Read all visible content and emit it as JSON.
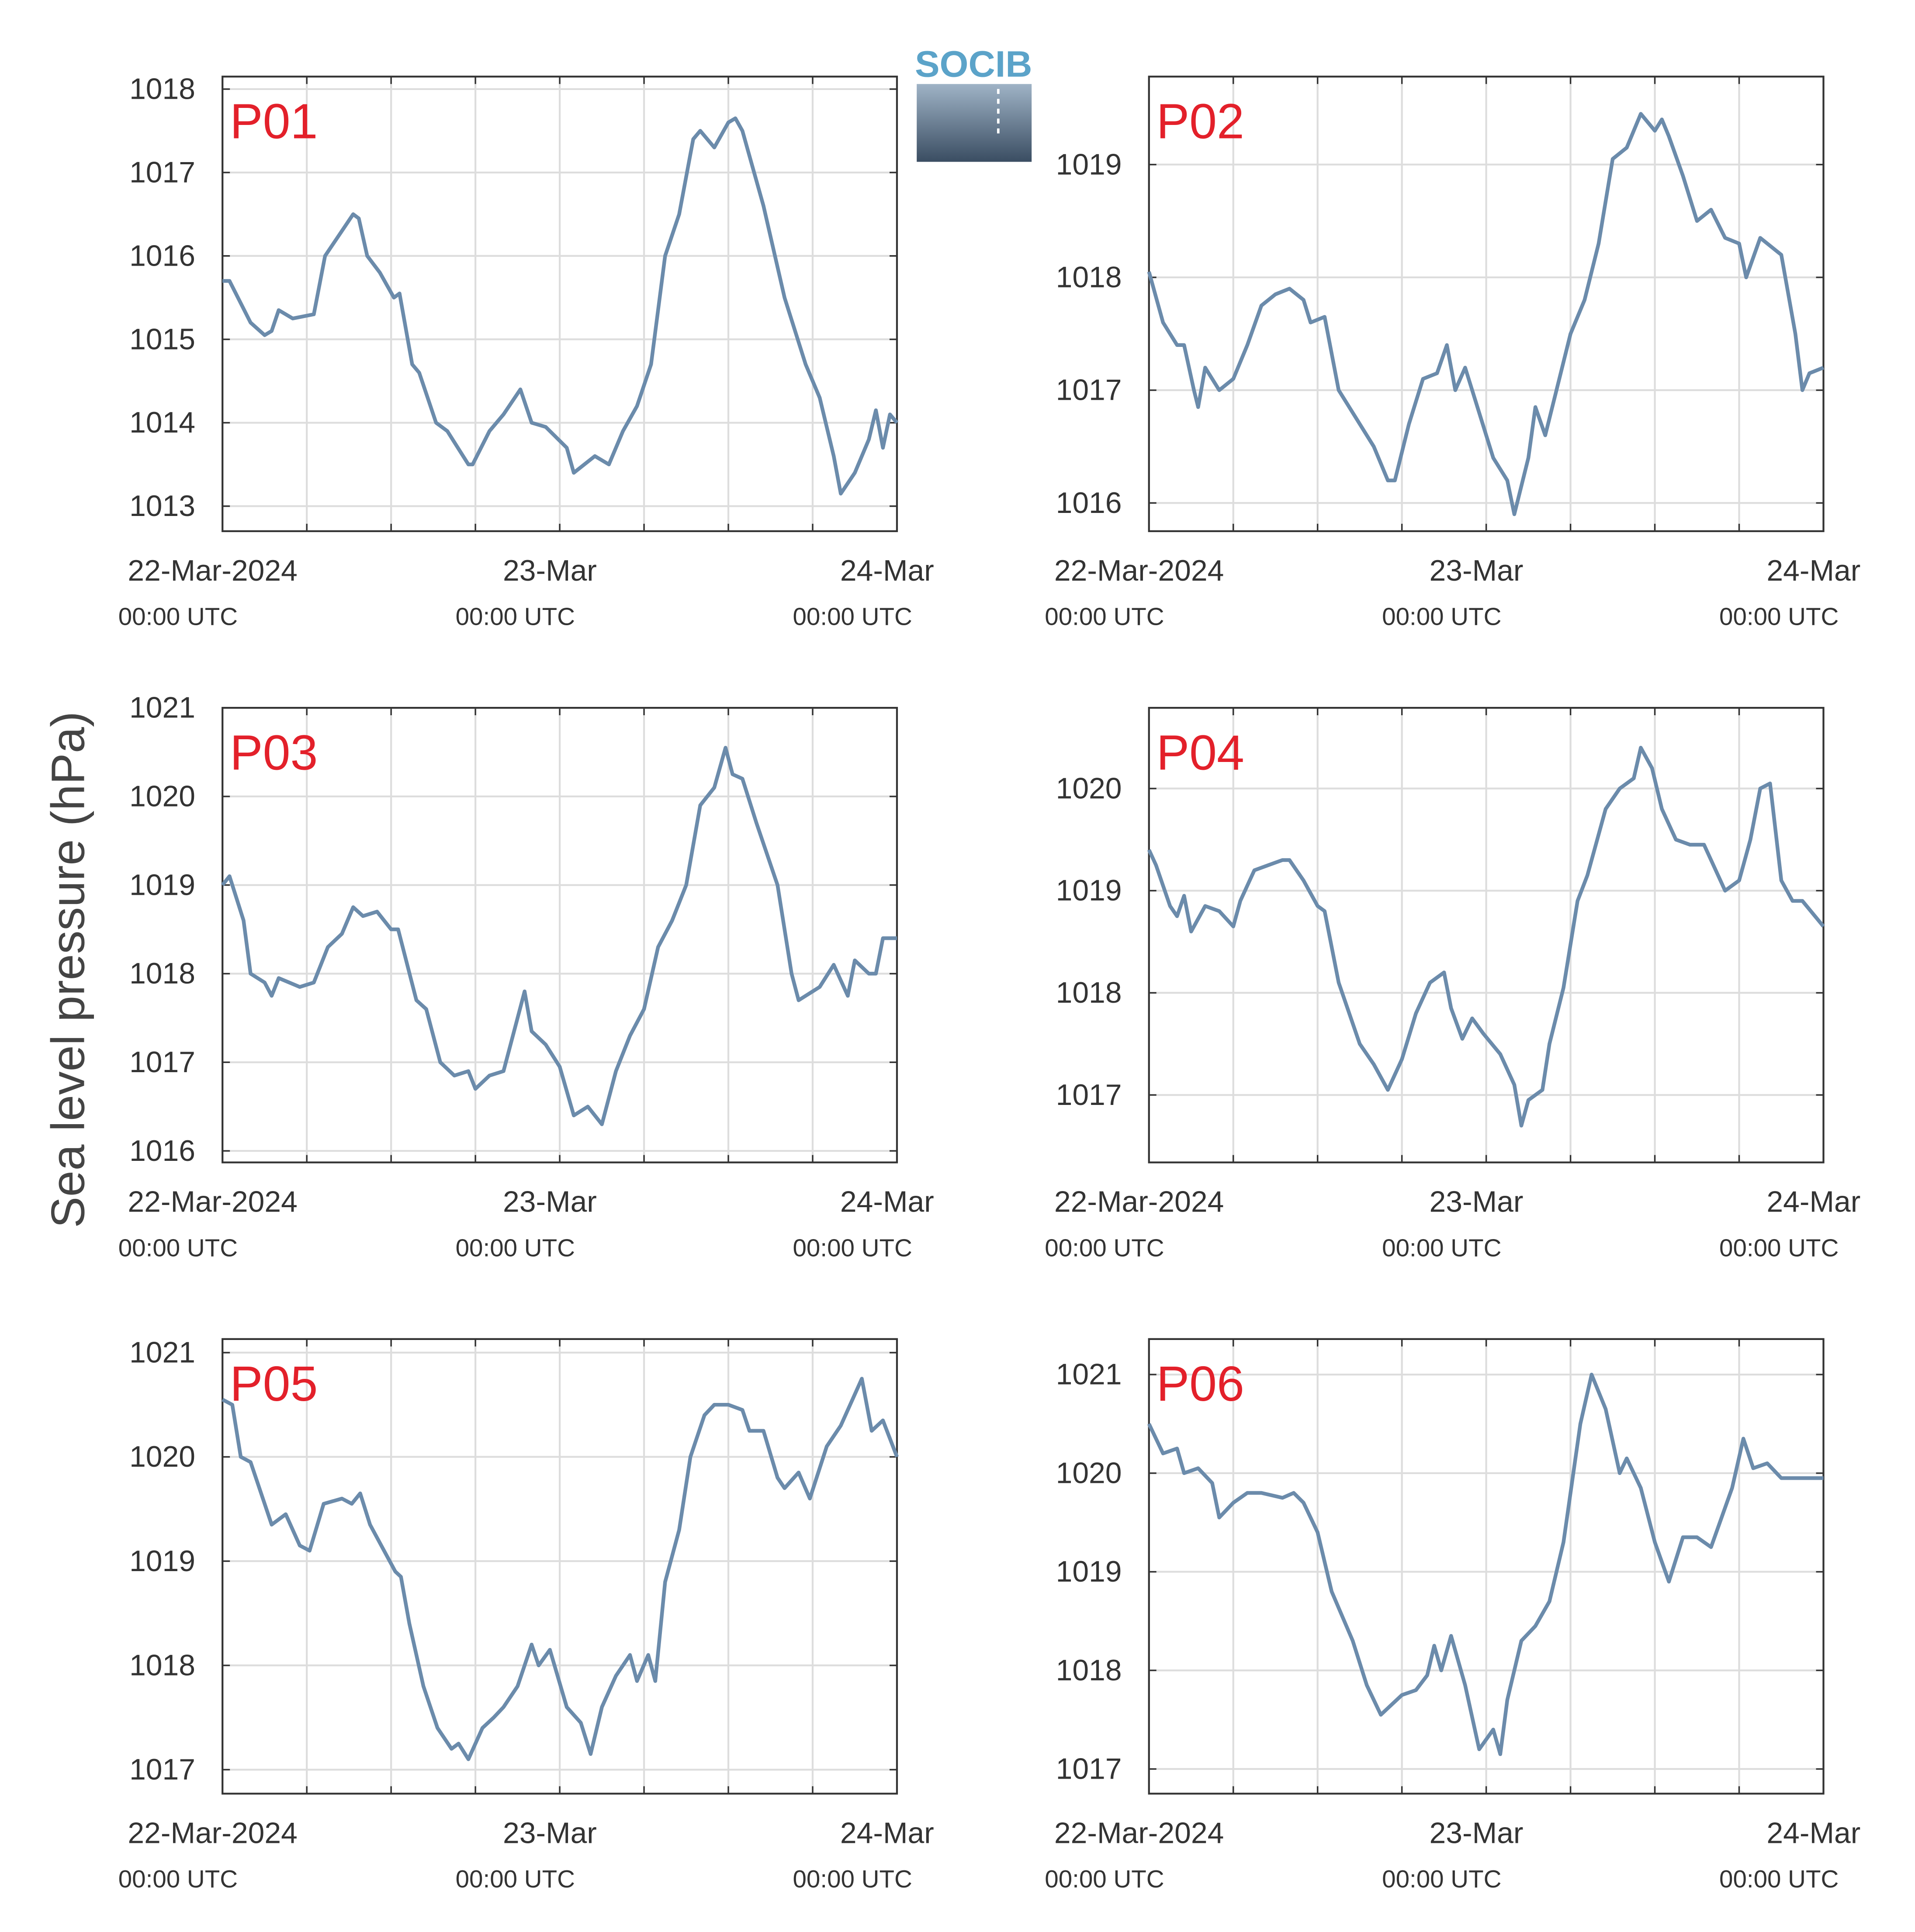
{
  "y_label": "Sea level pressure (hPa)",
  "logo": "SOCIB",
  "chart_data": [
    {
      "type": "line",
      "title": "P01",
      "color": "#6b8bab",
      "grid": true,
      "x": [
        0,
        0.5,
        2,
        3,
        3.5,
        4,
        5,
        6.5,
        7.3,
        8.5,
        9.3,
        9.7,
        10.3,
        11.2,
        12.2,
        12.6,
        13.5,
        14,
        15.2,
        16,
        17.5,
        17.8,
        19,
        20,
        21.2,
        22,
        23,
        24.5,
        25,
        26.5,
        27.5,
        28.5,
        29.5,
        30.5,
        31.5,
        32.5,
        33.5,
        34,
        35,
        36,
        36.5,
        37,
        38.5,
        40,
        41.5,
        42.5,
        43.5,
        44,
        45,
        46,
        46.5,
        47,
        47.5,
        48
      ],
      "values": [
        1015.7,
        1015.7,
        1015.2,
        1015.05,
        1015.1,
        1015.35,
        1015.25,
        1015.3,
        1016.0,
        1016.3,
        1016.5,
        1016.45,
        1016.0,
        1015.8,
        1015.5,
        1015.55,
        1014.7,
        1014.6,
        1014.0,
        1013.9,
        1013.5,
        1013.5,
        1013.9,
        1014.1,
        1014.4,
        1014.0,
        1013.95,
        1013.7,
        1013.4,
        1013.6,
        1013.5,
        1013.9,
        1014.2,
        1014.7,
        1016.0,
        1016.5,
        1017.4,
        1017.5,
        1017.3,
        1017.6,
        1017.65,
        1017.5,
        1016.6,
        1015.5,
        1014.7,
        1014.3,
        1013.6,
        1013.15,
        1013.4,
        1013.8,
        1014.15,
        1013.7,
        1014.1,
        1014.0
      ],
      "xlim": [
        0,
        48
      ],
      "ylim": [
        1012.7,
        1018.15
      ],
      "yticks": [
        1013,
        1014,
        1015,
        1016,
        1017,
        1018
      ],
      "xticks": [
        {
          "value": 0,
          "label": "22-Mar-2024",
          "sublabel": "00:00 UTC"
        },
        {
          "value": 6,
          "label": null
        },
        {
          "value": 12,
          "label": null
        },
        {
          "value": 18,
          "label": null
        },
        {
          "value": 24,
          "label": "23-Mar",
          "sublabel": "00:00 UTC"
        },
        {
          "value": 30,
          "label": null
        },
        {
          "value": 36,
          "label": null
        },
        {
          "value": 42,
          "label": null
        },
        {
          "value": 48,
          "label": "24-Mar",
          "sublabel": "00:00 UTC"
        }
      ]
    },
    {
      "type": "line",
      "title": "P02",
      "color": "#6b8bab",
      "grid": true,
      "x": [
        0,
        1,
        2,
        2.5,
        3.2,
        3.5,
        4,
        5,
        6,
        7,
        8,
        9,
        10,
        11,
        11.5,
        12.5,
        13.5,
        14.5,
        16,
        17,
        17.5,
        18.5,
        19.5,
        20.5,
        21.2,
        21.8,
        22.5,
        23.5,
        24.5,
        25.5,
        26,
        27,
        27.5,
        28.2,
        29,
        30,
        31,
        32,
        33,
        34,
        35,
        36,
        36.5,
        37,
        38,
        39,
        40,
        41,
        42,
        42.5,
        43.5,
        44.5,
        45,
        46,
        46.5,
        47,
        48
      ],
      "values": [
        1018.05,
        1017.6,
        1017.4,
        1017.4,
        1017.0,
        1016.85,
        1017.2,
        1017.0,
        1017.1,
        1017.4,
        1017.75,
        1017.85,
        1017.9,
        1017.8,
        1017.6,
        1017.65,
        1017.0,
        1016.8,
        1016.5,
        1016.2,
        1016.2,
        1016.7,
        1017.1,
        1017.15,
        1017.4,
        1017.0,
        1017.2,
        1016.8,
        1016.4,
        1016.2,
        1015.9,
        1016.4,
        1016.85,
        1016.6,
        1017.0,
        1017.5,
        1017.8,
        1018.3,
        1019.05,
        1019.15,
        1019.45,
        1019.3,
        1019.4,
        1019.25,
        1018.9,
        1018.5,
        1018.6,
        1018.35,
        1018.3,
        1018.0,
        1018.35,
        1018.25,
        1018.2,
        1017.5,
        1017.0,
        1017.15,
        1017.2
      ],
      "xlim": [
        0,
        48
      ],
      "ylim": [
        1015.75,
        1019.78
      ],
      "yticks": [
        1016,
        1017,
        1018,
        1019
      ],
      "xticks": [
        {
          "value": 0,
          "label": "22-Mar-2024",
          "sublabel": "00:00 UTC"
        },
        {
          "value": 6,
          "label": null
        },
        {
          "value": 12,
          "label": null
        },
        {
          "value": 18,
          "label": null
        },
        {
          "value": 24,
          "label": "23-Mar",
          "sublabel": "00:00 UTC"
        },
        {
          "value": 30,
          "label": null
        },
        {
          "value": 36,
          "label": null
        },
        {
          "value": 42,
          "label": null
        },
        {
          "value": 48,
          "label": "24-Mar",
          "sublabel": "00:00 UTC"
        }
      ]
    },
    {
      "type": "line",
      "title": "P03",
      "color": "#6b8bab",
      "grid": true,
      "x": [
        0,
        0.5,
        1.5,
        2,
        3,
        3.5,
        4,
        5.5,
        6.5,
        7.5,
        8.5,
        9.3,
        10,
        11,
        12,
        12.5,
        13.8,
        14.5,
        15.5,
        16.5,
        17.5,
        18,
        19,
        20,
        20.5,
        21.5,
        22,
        23,
        24,
        25,
        26,
        27,
        28,
        29,
        30,
        31,
        32,
        33,
        34,
        35,
        35.8,
        36.3,
        37,
        38,
        39.5,
        40.5,
        41,
        42,
        42.5,
        43.5,
        44.5,
        45,
        46,
        46.5,
        47,
        48
      ],
      "values": [
        1019.0,
        1019.1,
        1018.6,
        1018.0,
        1017.9,
        1017.75,
        1017.95,
        1017.85,
        1017.9,
        1018.3,
        1018.45,
        1018.75,
        1018.65,
        1018.7,
        1018.5,
        1018.5,
        1017.7,
        1017.6,
        1017.0,
        1016.85,
        1016.9,
        1016.7,
        1016.85,
        1016.9,
        1017.2,
        1017.8,
        1017.35,
        1017.2,
        1016.95,
        1016.4,
        1016.5,
        1016.3,
        1016.9,
        1017.3,
        1017.6,
        1018.3,
        1018.6,
        1019.0,
        1019.9,
        1020.1,
        1020.55,
        1020.25,
        1020.2,
        1019.7,
        1019.0,
        1018.0,
        1017.7,
        1017.8,
        1017.85,
        1018.1,
        1017.75,
        1018.15,
        1018.0,
        1018.0,
        1018.4,
        1018.4
      ],
      "xlim": [
        0,
        48
      ],
      "ylim": [
        1015.87,
        1021.0
      ],
      "yticks": [
        1016,
        1017,
        1018,
        1019,
        1020,
        1021
      ],
      "xticks": [
        {
          "value": 0,
          "label": "22-Mar-2024",
          "sublabel": "00:00 UTC"
        },
        {
          "value": 6,
          "label": null
        },
        {
          "value": 12,
          "label": null
        },
        {
          "value": 18,
          "label": null
        },
        {
          "value": 24,
          "label": "23-Mar",
          "sublabel": "00:00 UTC"
        },
        {
          "value": 30,
          "label": null
        },
        {
          "value": 36,
          "label": null
        },
        {
          "value": 42,
          "label": null
        },
        {
          "value": 48,
          "label": "24-Mar",
          "sublabel": "00:00 UTC"
        }
      ]
    },
    {
      "type": "line",
      "title": "P04",
      "color": "#6b8bab",
      "grid": true,
      "x": [
        0,
        0.5,
        1.5,
        2,
        2.5,
        3,
        4,
        5,
        6,
        6.5,
        7.5,
        8.5,
        9.5,
        10,
        11,
        12,
        12.5,
        13.5,
        15,
        16,
        17,
        18,
        19,
        20,
        21,
        21.5,
        22.3,
        23,
        23.8,
        25,
        26,
        26.5,
        27,
        28,
        28.5,
        29.5,
        30.5,
        31.2,
        32.5,
        33.5,
        34.5,
        35,
        35.8,
        36.5,
        37.5,
        38.5,
        39.5,
        41,
        42,
        42.8,
        43.5,
        44.2,
        45,
        45.8,
        46.5,
        48
      ],
      "values": [
        1019.4,
        1019.25,
        1018.85,
        1018.75,
        1018.95,
        1018.6,
        1018.85,
        1018.8,
        1018.65,
        1018.9,
        1019.2,
        1019.25,
        1019.3,
        1019.3,
        1019.1,
        1018.85,
        1018.8,
        1018.1,
        1017.5,
        1017.3,
        1017.05,
        1017.35,
        1017.8,
        1018.1,
        1018.2,
        1017.85,
        1017.55,
        1017.75,
        1017.6,
        1017.4,
        1017.1,
        1016.7,
        1016.95,
        1017.05,
        1017.5,
        1018.05,
        1018.9,
        1019.15,
        1019.8,
        1020.0,
        1020.1,
        1020.4,
        1020.2,
        1019.8,
        1019.5,
        1019.45,
        1019.45,
        1019.0,
        1019.1,
        1019.5,
        1020.0,
        1020.05,
        1019.1,
        1018.9,
        1018.9,
        1018.65
      ],
      "xlim": [
        0,
        48
      ],
      "ylim": [
        1016.34,
        1020.79
      ],
      "yticks": [
        1017,
        1018,
        1019,
        1020
      ],
      "xticks": [
        {
          "value": 0,
          "label": "22-Mar-2024",
          "sublabel": "00:00 UTC"
        },
        {
          "value": 6,
          "label": null
        },
        {
          "value": 12,
          "label": null
        },
        {
          "value": 18,
          "label": null
        },
        {
          "value": 24,
          "label": "23-Mar",
          "sublabel": "00:00 UTC"
        },
        {
          "value": 30,
          "label": null
        },
        {
          "value": 36,
          "label": null
        },
        {
          "value": 42,
          "label": null
        },
        {
          "value": 48,
          "label": "24-Mar",
          "sublabel": "00:00 UTC"
        }
      ]
    },
    {
      "type": "line",
      "title": "P05",
      "color": "#6b8bab",
      "grid": true,
      "x": [
        0,
        0.7,
        1.3,
        2,
        2.5,
        3.5,
        4.5,
        5.5,
        6.2,
        7.2,
        8.5,
        9.2,
        9.8,
        10.5,
        11.3,
        12.3,
        12.7,
        13.3,
        14.3,
        15.3,
        16.3,
        16.8,
        17.5,
        18.5,
        19.3,
        20,
        21,
        22,
        22.5,
        23.3,
        24.5,
        25.5,
        26.2,
        27,
        28,
        29,
        29.5,
        30.3,
        30.8,
        31.5,
        32.5,
        33.3,
        34.3,
        35,
        36,
        37,
        37.5,
        38.5,
        39.5,
        40,
        41,
        41.8,
        43,
        44,
        45,
        45.5,
        46.2,
        47,
        48
      ],
      "values": [
        1020.55,
        1020.5,
        1020.0,
        1019.95,
        1019.75,
        1019.35,
        1019.45,
        1019.15,
        1019.1,
        1019.55,
        1019.6,
        1019.55,
        1019.65,
        1019.35,
        1019.15,
        1018.9,
        1018.85,
        1018.4,
        1017.8,
        1017.4,
        1017.2,
        1017.25,
        1017.1,
        1017.4,
        1017.5,
        1017.6,
        1017.8,
        1018.2,
        1018.0,
        1018.15,
        1017.6,
        1017.45,
        1017.15,
        1017.6,
        1017.9,
        1018.1,
        1017.85,
        1018.1,
        1017.85,
        1018.8,
        1019.3,
        1020.0,
        1020.4,
        1020.5,
        1020.5,
        1020.45,
        1020.25,
        1020.25,
        1019.8,
        1019.7,
        1019.85,
        1019.6,
        1020.1,
        1020.3,
        1020.6,
        1020.75,
        1020.25,
        1020.35,
        1020.0
      ],
      "xlim": [
        0,
        48
      ],
      "ylim": [
        1016.77,
        1021.13
      ],
      "yticks": [
        1017,
        1018,
        1019,
        1020,
        1021
      ],
      "xticks": [
        {
          "value": 0,
          "label": "22-Mar-2024",
          "sublabel": "00:00 UTC"
        },
        {
          "value": 6,
          "label": null
        },
        {
          "value": 12,
          "label": null
        },
        {
          "value": 18,
          "label": null
        },
        {
          "value": 24,
          "label": "23-Mar",
          "sublabel": "00:00 UTC"
        },
        {
          "value": 30,
          "label": null
        },
        {
          "value": 36,
          "label": null
        },
        {
          "value": 42,
          "label": null
        },
        {
          "value": 48,
          "label": "24-Mar",
          "sublabel": "00:00 UTC"
        }
      ]
    },
    {
      "type": "line",
      "title": "P06",
      "color": "#6b8bab",
      "grid": true,
      "x": [
        0,
        1,
        2,
        2.5,
        3.5,
        4.5,
        5,
        6,
        7,
        8,
        9.5,
        10.3,
        11,
        12,
        13,
        14.5,
        15.5,
        16.5,
        18,
        19,
        19.8,
        20.3,
        20.8,
        21.5,
        22.5,
        23.5,
        24.5,
        25,
        25.5,
        26.5,
        27.5,
        28.5,
        29.5,
        30.7,
        31.5,
        32.5,
        33.5,
        34,
        35,
        36,
        37,
        38,
        39,
        40,
        40.5,
        41.5,
        42.3,
        43,
        44,
        45,
        48
      ],
      "values": [
        1020.5,
        1020.2,
        1020.25,
        1020.0,
        1020.05,
        1019.9,
        1019.55,
        1019.7,
        1019.8,
        1019.8,
        1019.75,
        1019.8,
        1019.7,
        1019.4,
        1018.8,
        1018.3,
        1017.85,
        1017.55,
        1017.75,
        1017.8,
        1017.95,
        1018.25,
        1018.0,
        1018.35,
        1017.85,
        1017.2,
        1017.4,
        1017.15,
        1017.7,
        1018.3,
        1018.45,
        1018.7,
        1019.3,
        1020.5,
        1021.0,
        1020.65,
        1020.0,
        1020.15,
        1019.85,
        1019.3,
        1018.9,
        1019.35,
        1019.35,
        1019.25,
        1019.45,
        1019.85,
        1020.35,
        1020.05,
        1020.1,
        1019.95,
        1019.95
      ],
      "xlim": [
        0,
        48
      ],
      "ylim": [
        1016.75,
        1021.36
      ],
      "yticks": [
        1017,
        1018,
        1019,
        1020,
        1021
      ],
      "xticks": [
        {
          "value": 0,
          "label": "22-Mar-2024",
          "sublabel": "00:00 UTC"
        },
        {
          "value": 6,
          "label": null
        },
        {
          "value": 12,
          "label": null
        },
        {
          "value": 18,
          "label": null
        },
        {
          "value": 24,
          "label": "23-Mar",
          "sublabel": "00:00 UTC"
        },
        {
          "value": 30,
          "label": null
        },
        {
          "value": 36,
          "label": null
        },
        {
          "value": 42,
          "label": null
        },
        {
          "value": 48,
          "label": "24-Mar",
          "sublabel": "00:00 UTC"
        }
      ]
    }
  ]
}
